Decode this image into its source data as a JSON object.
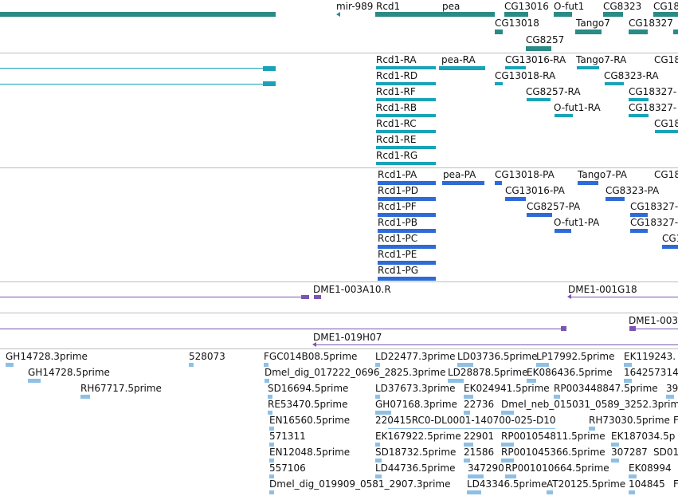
{
  "colors": {
    "gene": "#2a8a86",
    "transcript": "#1aa3b8",
    "cds": "#2e6bd6",
    "clone": "#7b55b3",
    "est": "#8ec0e6",
    "divider": "#bdbdbd"
  },
  "tracks": {
    "genes": [
      "mir-989",
      "Rcd1",
      "pea",
      "CG13016",
      "O-fut1",
      "CG8323",
      "CG18",
      "CG13018",
      "Tango7",
      "CG18327",
      "CG8257"
    ],
    "transcripts": [
      "Rcd1-RA",
      "pea-RA",
      "CG13016-RA",
      "Tango7-RA",
      "CG18",
      "Rcd1-RD",
      "CG13018-RA",
      "CG8323-RA",
      "Rcd1-RF",
      "CG8257-RA",
      "CG18327-",
      "Rcd1-RB",
      "O-fut1-RA",
      "CG18327-",
      "Rcd1-RC",
      "CG18",
      "Rcd1-RE",
      "Rcd1-RG"
    ],
    "cds": [
      "Rcd1-PA",
      "pea-PA",
      "CG13018-PA",
      "Tango7-PA",
      "CG18",
      "Rcd1-PD",
      "CG13016-PA",
      "CG8323-PA",
      "Rcd1-PF",
      "CG8257-PA",
      "CG18327-",
      "Rcd1-PB",
      "O-fut1-PA",
      "CG18327-",
      "Rcd1-PC",
      "CG1",
      "Rcd1-PE",
      "Rcd1-PG"
    ],
    "clones": [
      "DME1-003A10.R",
      "DME1-001G18",
      "DME1-003",
      "DME1-019H07"
    ],
    "ests": [
      "GH14728.3prime",
      "528073",
      "FGC014B08.5prime",
      "LD22477.3prime",
      "LD03736.5prime",
      "LP17992.5prime",
      "EK119243.",
      "GH14728.5prime",
      "Dmel_dig_017222_0696_2825.3prime",
      "LD28878.5prime",
      "EK086436.5prime",
      "164257314",
      "RH67717.5prime",
      "SD16694.5prime",
      "LD37673.3prime",
      "EK024941.5prime",
      "RP003448847.5prime",
      "39",
      "RE53470.5prime",
      "GH07168.3prime",
      "22736",
      "Dmel_neb_015031_0589_3252.3prim",
      "EN16560.5prime",
      "220415RC0-DL0001-140700-025-D10",
      "RH73030.5prime",
      "F",
      "571311",
      "EK167922.5prime",
      "22901",
      "RP001054811.5prime",
      "EK187034.5p",
      "EN12048.5prime",
      "SD18732.5prime",
      "21586",
      "RP001045366.5prime",
      "307287",
      "SD01",
      "557106",
      "LD44736.5prime",
      "347290",
      "RP001010664.5prime",
      "EK08994",
      "Dmel_dig_019909_0581_2907.3prime",
      "LD43346.5prime",
      "AT20125.5prime",
      "104845",
      "F"
    ]
  }
}
